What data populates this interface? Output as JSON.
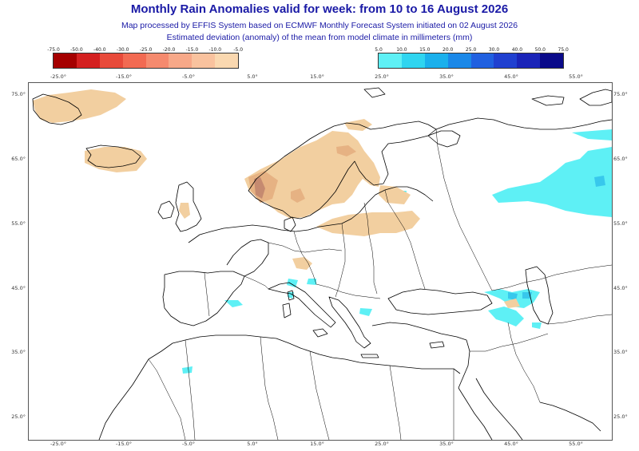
{
  "header": {
    "title": "Monthly Rain Anomalies valid for week: from 10 to 16 August 2026",
    "subtitle1": "Map processed by EFFIS System based on ECMWF Monthly Forecast System initiated on 02 August 2026",
    "subtitle2": "Estimated deviation (anomaly) of the mean from model climate in millimeters (mm)"
  },
  "legend": {
    "dry": {
      "ticks": [
        "-75.0",
        "-50.0",
        "-40.0",
        "-30.0",
        "-25.0",
        "-20.0",
        "-15.0",
        "-10.0",
        "-5.0"
      ],
      "colors": [
        "#a50000",
        "#d42020",
        "#e84a3a",
        "#f26a52",
        "#f58a6e",
        "#f7a888",
        "#f9c29e",
        "#fad8b0"
      ]
    },
    "wet": {
      "ticks": [
        "5.0",
        "10.0",
        "15.0",
        "20.0",
        "25.0",
        "30.0",
        "40.0",
        "50.0",
        "75.0"
      ],
      "colors": [
        "#5ef0f5",
        "#2fd5f0",
        "#1ab0ec",
        "#1a88e8",
        "#2060e0",
        "#2040d0",
        "#1a24b8",
        "#0a0a8a"
      ]
    }
  },
  "axes": {
    "lon_labels": [
      "-25.0°",
      "-15.0°",
      "-5.0°",
      "5.0°",
      "15.0°",
      "25.0°",
      "35.0°",
      "45.0°",
      "55.0°"
    ],
    "lat_labels": [
      "75.0°",
      "65.0°",
      "55.0°",
      "45.0°",
      "35.0°",
      "25.0°"
    ]
  },
  "colors": {
    "dry_light": "#f2cfa0",
    "dry_mid": "#e6b283",
    "dry_dark": "#c58a70",
    "wet_light": "#5ef0f5",
    "wet_mid": "#38d0ee",
    "coast": "#000000"
  }
}
